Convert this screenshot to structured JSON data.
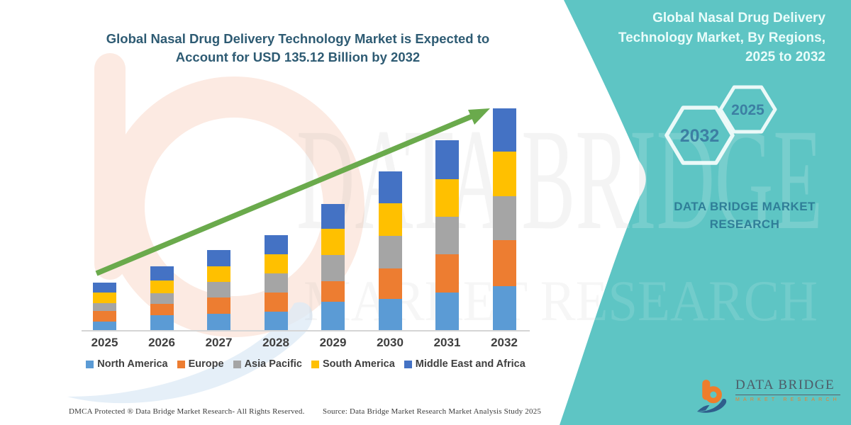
{
  "page": {
    "background": "#ffffff",
    "accent_teal": "#5EC5C4"
  },
  "title": {
    "line1": "Global Nasal Drug Delivery Technology Market is Expected to",
    "line2": "Account for USD 135.12 Billion by 2032"
  },
  "sidebar": {
    "heading_line1": "Global Nasal Drug Delivery",
    "heading_line2": "Technology Market, By Regions,",
    "heading_line3": "2025 to 2032",
    "hex_left_year": "2032",
    "hex_right_year": "2025",
    "brand_line1": "DATA BRIDGE MARKET",
    "brand_line2": "RESEARCH"
  },
  "chart_data": {
    "type": "bar",
    "stacked": true,
    "title": "Global Nasal Drug Delivery Technology Market is Expected to Account for USD 135.12 Billion by 2032",
    "unit": "USD Billion",
    "categories": [
      "2025",
      "2026",
      "2027",
      "2028",
      "2029",
      "2030",
      "2031",
      "2032"
    ],
    "series": [
      {
        "name": "North America",
        "color": "#5B9BD5",
        "values": [
          5.3,
          9.0,
          10.1,
          11.3,
          17.5,
          19.1,
          22.7,
          26.8
        ]
      },
      {
        "name": "Europe",
        "color": "#ED7D31",
        "values": [
          6.4,
          7.1,
          9.9,
          11.7,
          12.5,
          18.3,
          23.7,
          28.0
        ]
      },
      {
        "name": "Asia Pacific",
        "color": "#A5A5A5",
        "values": [
          4.9,
          6.3,
          9.4,
          11.5,
          15.7,
          19.9,
          22.6,
          26.9
        ]
      },
      {
        "name": "South America",
        "color": "#FFC000",
        "values": [
          6.1,
          7.7,
          9.6,
          11.8,
          16.2,
          19.8,
          23.0,
          27.0
        ]
      },
      {
        "name": "Middle East and Africa",
        "color": "#4472C4",
        "values": [
          6.2,
          8.8,
          9.8,
          11.6,
          14.9,
          19.6,
          23.7,
          26.4
        ]
      }
    ],
    "totals": [
      28.9,
      38.9,
      48.8,
      57.9,
      76.8,
      96.7,
      115.7,
      135.12
    ],
    "ylim": [
      0,
      135.12
    ],
    "grid": false,
    "legend_position": "bottom",
    "trend_arrow_color": "#6AAA4C"
  },
  "footer": {
    "dmca": "DMCA Protected ® Data Bridge Market Research-  All Rights Reserved.",
    "source": "Source: Data Bridge Market Research  Market Analysis Study 2025"
  },
  "logo": {
    "name": "DATA BRIDGE",
    "tagline": "MARKET RESEARCH"
  },
  "watermark": {
    "line1": "DATA BRIDGE",
    "line2": "MARKET RESEARCH"
  }
}
